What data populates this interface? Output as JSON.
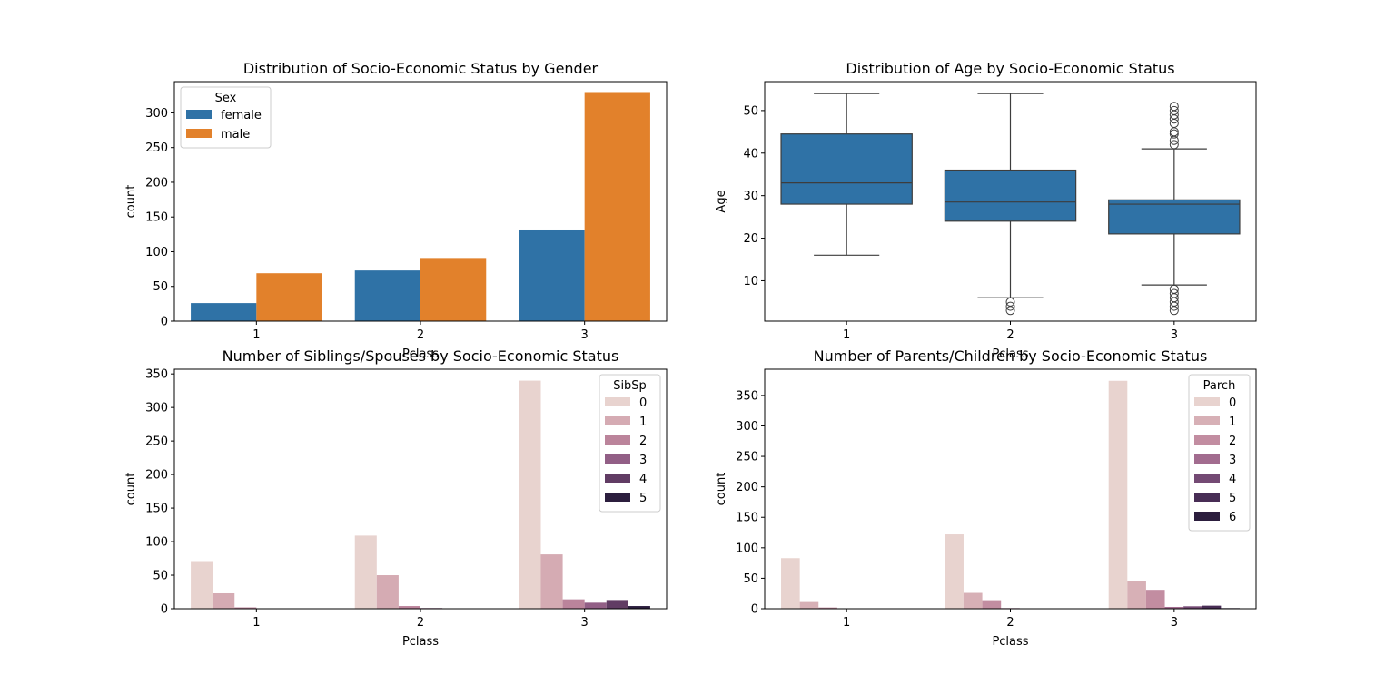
{
  "chart_data": [
    {
      "type": "bar",
      "title": "Distribution of Socio-Economic Status by Gender",
      "xlabel": "Pclass",
      "ylabel": "count",
      "categories": [
        "1",
        "2",
        "3"
      ],
      "ylim": [
        0,
        345
      ],
      "yticks": [
        0,
        50,
        100,
        150,
        200,
        250,
        300
      ],
      "legend": {
        "title": "Sex",
        "placement": "upper-left"
      },
      "series": [
        {
          "name": "female",
          "color": "#2f72a6",
          "values": [
            26,
            73,
            132
          ]
        },
        {
          "name": "male",
          "color": "#e2812b",
          "values": [
            69,
            91,
            330
          ]
        }
      ]
    },
    {
      "type": "box",
      "title": "Distribution of Age by Socio-Economic Status",
      "xlabel": "Pclass",
      "ylabel": "Age",
      "categories": [
        "1",
        "2",
        "3"
      ],
      "ylim": [
        0.5,
        56.8
      ],
      "yticks": [
        10,
        20,
        30,
        40,
        50
      ],
      "color": "#2f72a6",
      "boxes": [
        {
          "whisker_low": 16,
          "q1": 28,
          "median": 33,
          "q3": 44.5,
          "whisker_high": 54,
          "outliers": []
        },
        {
          "whisker_low": 6,
          "q1": 24,
          "median": 28.5,
          "q3": 36,
          "whisker_high": 54,
          "outliers": [
            3,
            4,
            5
          ]
        },
        {
          "whisker_low": 9,
          "q1": 21,
          "median": 28,
          "q3": 29,
          "whisker_high": 41,
          "outliers": [
            3,
            4,
            5,
            6,
            7,
            8,
            42,
            43,
            44.5,
            45,
            47,
            48,
            49,
            50,
            51
          ]
        }
      ]
    },
    {
      "type": "bar",
      "title": "Number of Siblings/Spouses by Socio-Economic Status",
      "xlabel": "Pclass",
      "ylabel": "count",
      "categories": [
        "1",
        "2",
        "3"
      ],
      "ylim": [
        0,
        357
      ],
      "yticks": [
        0,
        50,
        100,
        150,
        200,
        250,
        300,
        350
      ],
      "legend": {
        "title": "SibSp",
        "placement": "upper-right"
      },
      "series": [
        {
          "name": "0",
          "color": "#e8d3cf",
          "values": [
            71,
            109,
            340
          ]
        },
        {
          "name": "1",
          "color": "#d5abb3",
          "values": [
            23,
            50,
            81
          ]
        },
        {
          "name": "2",
          "color": "#bb849b",
          "values": [
            2,
            4,
            14
          ]
        },
        {
          "name": "3",
          "color": "#925f86",
          "values": [
            0,
            1,
            9
          ]
        },
        {
          "name": "4",
          "color": "#613c64",
          "values": [
            0,
            0,
            13
          ]
        },
        {
          "name": "5",
          "color": "#2c1e3e",
          "values": [
            0,
            0,
            4
          ]
        }
      ]
    },
    {
      "type": "bar",
      "title": "Number of Parents/Children by Socio-Economic Status",
      "xlabel": "Pclass",
      "ylabel": "count",
      "categories": [
        "1",
        "2",
        "3"
      ],
      "ylim": [
        0,
        393
      ],
      "yticks": [
        0,
        50,
        100,
        150,
        200,
        250,
        300,
        350
      ],
      "legend": {
        "title": "Parch",
        "placement": "upper-right"
      },
      "series": [
        {
          "name": "0",
          "color": "#e8d3cf",
          "values": [
            83,
            122,
            374
          ]
        },
        {
          "name": "1",
          "color": "#d7b0b6",
          "values": [
            11,
            26,
            45
          ]
        },
        {
          "name": "2",
          "color": "#c28da1",
          "values": [
            2,
            14,
            31
          ]
        },
        {
          "name": "3",
          "color": "#a26c8f",
          "values": [
            0,
            1,
            3
          ]
        },
        {
          "name": "4",
          "color": "#744a74",
          "values": [
            0,
            0,
            4
          ]
        },
        {
          "name": "5",
          "color": "#482d55",
          "values": [
            0,
            0,
            5
          ]
        },
        {
          "name": "6",
          "color": "#2c1e3e",
          "values": [
            0,
            0,
            1
          ]
        }
      ]
    }
  ]
}
